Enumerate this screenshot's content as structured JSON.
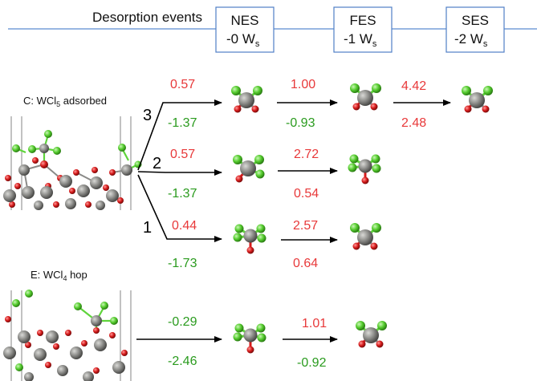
{
  "header": {
    "title": "Desorption events",
    "boxes": [
      {
        "name": "NES",
        "energy": "-0 W",
        "sub": "s"
      },
      {
        "name": "FES",
        "energy": "-1 W",
        "sub": "s"
      },
      {
        "name": "SES",
        "energy": "-2 W",
        "sub": "s"
      }
    ]
  },
  "panel_c": {
    "label_prefix": "C: WCl",
    "label_sub": "5",
    "label_suffix": " adsorbed",
    "paths": [
      {
        "number": "3",
        "top": "0.57",
        "bottom": "-1.37",
        "step2_top": "1.00",
        "step2_bottom": "-0.93",
        "step3_top": "4.42",
        "step3_bottom": "2.48"
      },
      {
        "number": "2",
        "top": "0.57",
        "bottom": "-1.37",
        "step2_top": "2.72",
        "step2_bottom": "0.54"
      },
      {
        "number": "1",
        "top": "0.44",
        "bottom": "-1.73",
        "step2_top": "2.57",
        "step2_bottom": "0.64"
      }
    ]
  },
  "panel_e": {
    "label_prefix": "E: WCl",
    "label_sub": "4",
    "label_suffix": " hop",
    "top": "-0.29",
    "bottom": "-2.46",
    "step2_top": "1.01",
    "step2_bottom": "-0.92"
  },
  "colors": {
    "line_blue": "#5b8bd0",
    "red_value": "#e8393a",
    "green_value": "#2a9b1e",
    "tungsten": "#8a8a88",
    "chlorine": "#5fd43b",
    "oxygen": "#d71c1c"
  }
}
